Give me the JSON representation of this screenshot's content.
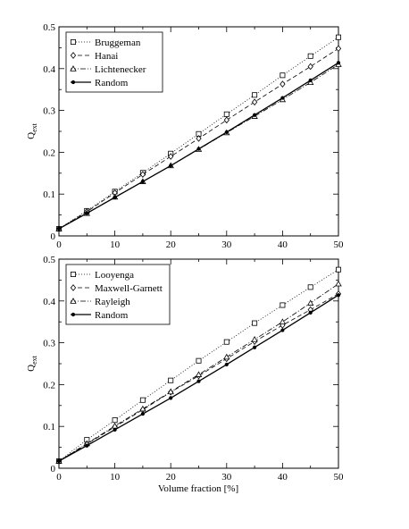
{
  "figure": {
    "xlabel": "Volume fraction [%]"
  },
  "chart_data": [
    {
      "type": "line",
      "xlabel": "",
      "ylabel": "Q",
      "ylabel_sub": "ext",
      "xlim": [
        0,
        50
      ],
      "ylim": [
        0,
        0.5
      ],
      "xticks": [
        0,
        10,
        20,
        30,
        40,
        50
      ],
      "yticks": [
        0,
        0.1,
        0.2,
        0.3,
        0.4,
        0.5
      ],
      "xtick_labels": [
        "0",
        "10",
        "20",
        "30",
        "40",
        "50"
      ],
      "ytick_labels": [
        "0",
        "0.1",
        "0.2",
        "0.3",
        "0.4",
        "0.5"
      ],
      "grid": false,
      "legend_position": "top-left",
      "x": [
        0,
        5,
        10,
        15,
        20,
        25,
        30,
        35,
        40,
        45,
        50
      ],
      "series": [
        {
          "name": "Bruggeman",
          "dash": "dotted",
          "marker": "square",
          "values": [
            0.017,
            0.06,
            0.106,
            0.151,
            0.197,
            0.244,
            0.291,
            0.337,
            0.384,
            0.43,
            0.475
          ]
        },
        {
          "name": "Hanai",
          "dash": "dashed",
          "marker": "diamond",
          "values": [
            0.017,
            0.058,
            0.103,
            0.147,
            0.19,
            0.233,
            0.277,
            0.32,
            0.363,
            0.405,
            0.448
          ]
        },
        {
          "name": "Lichtenecker",
          "dash": "dashdot",
          "marker": "triangle",
          "values": [
            0.017,
            0.054,
            0.093,
            0.13,
            0.168,
            0.207,
            0.247,
            0.286,
            0.326,
            0.367,
            0.41
          ]
        },
        {
          "name": "Random",
          "dash": "solid",
          "marker": "circle",
          "values": [
            0.017,
            0.054,
            0.092,
            0.13,
            0.168,
            0.208,
            0.248,
            0.289,
            0.33,
            0.372,
            0.414
          ]
        }
      ]
    },
    {
      "type": "line",
      "xlabel": "Volume fraction [%]",
      "ylabel": "Q",
      "ylabel_sub": "ext",
      "xlim": [
        0,
        50
      ],
      "ylim": [
        0,
        0.5
      ],
      "xticks": [
        0,
        10,
        20,
        30,
        40,
        50
      ],
      "yticks": [
        0,
        0.1,
        0.2,
        0.3,
        0.4,
        0.5
      ],
      "xtick_labels": [
        "0",
        "10",
        "20",
        "30",
        "40",
        "50"
      ],
      "ytick_labels": [
        "0",
        "0.1",
        "0.2",
        "0.3",
        "0.4",
        "0.5"
      ],
      "grid": false,
      "legend_position": "top-left",
      "x": [
        0,
        5,
        10,
        15,
        20,
        25,
        30,
        35,
        40,
        45,
        50
      ],
      "series": [
        {
          "name": "Looyenga",
          "dash": "dotted",
          "marker": "square",
          "values": [
            0.017,
            0.068,
            0.115,
            0.163,
            0.21,
            0.257,
            0.302,
            0.347,
            0.39,
            0.433,
            0.475
          ]
        },
        {
          "name": "Maxwell-Garnett",
          "dash": "dashed",
          "marker": "diamond",
          "values": [
            0.017,
            0.058,
            0.099,
            0.14,
            0.182,
            0.221,
            0.262,
            0.303,
            0.342,
            0.379,
            0.417
          ]
        },
        {
          "name": "Rayleigh",
          "dash": "dashdot",
          "marker": "triangle",
          "values": [
            0.017,
            0.059,
            0.101,
            0.142,
            0.183,
            0.224,
            0.266,
            0.308,
            0.35,
            0.395,
            0.441
          ]
        },
        {
          "name": "Random",
          "dash": "solid",
          "marker": "circle",
          "values": [
            0.017,
            0.054,
            0.092,
            0.13,
            0.168,
            0.208,
            0.248,
            0.289,
            0.33,
            0.372,
            0.414
          ]
        }
      ]
    }
  ]
}
